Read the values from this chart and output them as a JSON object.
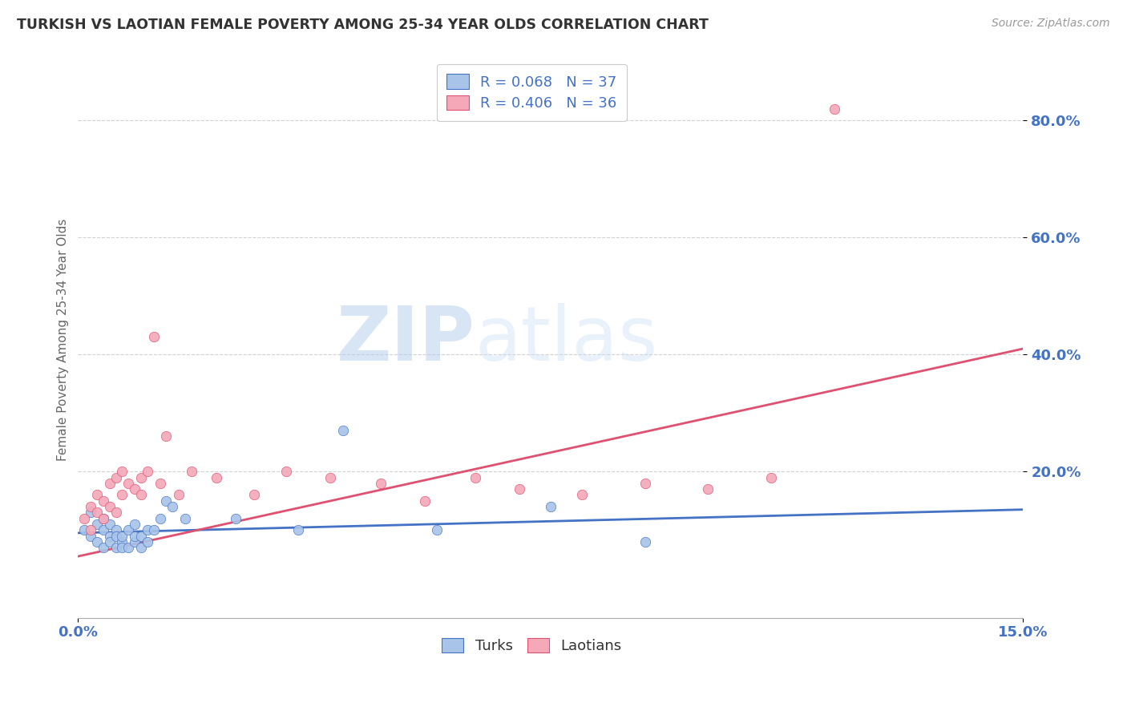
{
  "title": "TURKISH VS LAOTIAN FEMALE POVERTY AMONG 25-34 YEAR OLDS CORRELATION CHART",
  "source": "Source: ZipAtlas.com",
  "ylabel_label": "Female Poverty Among 25-34 Year Olds",
  "watermark_zip": "ZIP",
  "watermark_atlas": "atlas",
  "legend_turks_r": "R = 0.068",
  "legend_turks_n": "N = 37",
  "legend_laotians_r": "R = 0.406",
  "legend_laotians_n": "N = 36",
  "turks_color": "#a8c4e8",
  "laotians_color": "#f4a8b8",
  "turks_line_color": "#4472c4",
  "laotians_line_color": "#e05070",
  "turks_x": [
    0.001,
    0.002,
    0.002,
    0.003,
    0.003,
    0.004,
    0.004,
    0.004,
    0.005,
    0.005,
    0.005,
    0.006,
    0.006,
    0.006,
    0.007,
    0.007,
    0.007,
    0.008,
    0.008,
    0.009,
    0.009,
    0.009,
    0.01,
    0.01,
    0.011,
    0.011,
    0.012,
    0.013,
    0.014,
    0.015,
    0.017,
    0.025,
    0.035,
    0.042,
    0.057,
    0.075,
    0.09
  ],
  "turks_y": [
    0.1,
    0.13,
    0.09,
    0.11,
    0.08,
    0.1,
    0.12,
    0.07,
    0.09,
    0.11,
    0.08,
    0.07,
    0.1,
    0.09,
    0.08,
    0.07,
    0.09,
    0.1,
    0.07,
    0.08,
    0.09,
    0.11,
    0.07,
    0.09,
    0.1,
    0.08,
    0.1,
    0.12,
    0.15,
    0.14,
    0.12,
    0.12,
    0.1,
    0.27,
    0.1,
    0.14,
    0.08
  ],
  "laotians_x": [
    0.001,
    0.002,
    0.002,
    0.003,
    0.003,
    0.004,
    0.004,
    0.005,
    0.005,
    0.006,
    0.006,
    0.007,
    0.007,
    0.008,
    0.009,
    0.01,
    0.01,
    0.011,
    0.012,
    0.013,
    0.014,
    0.016,
    0.018,
    0.022,
    0.028,
    0.033,
    0.04,
    0.048,
    0.055,
    0.063,
    0.07,
    0.08,
    0.09,
    0.1,
    0.11,
    0.12
  ],
  "laotians_y": [
    0.12,
    0.14,
    0.1,
    0.13,
    0.16,
    0.15,
    0.12,
    0.14,
    0.18,
    0.13,
    0.19,
    0.2,
    0.16,
    0.18,
    0.17,
    0.16,
    0.19,
    0.2,
    0.43,
    0.18,
    0.26,
    0.16,
    0.2,
    0.19,
    0.16,
    0.2,
    0.19,
    0.18,
    0.15,
    0.19,
    0.17,
    0.16,
    0.18,
    0.17,
    0.19,
    0.82
  ],
  "turks_line_x0": 0.0,
  "turks_line_x1": 0.15,
  "turks_line_y0": 0.095,
  "turks_line_y1": 0.135,
  "laotians_line_x0": 0.0,
  "laotians_line_x1": 0.15,
  "laotians_line_y0": 0.055,
  "laotians_line_y1": 0.41,
  "xlim": [
    0.0,
    0.15
  ],
  "ylim": [
    -0.05,
    0.9
  ],
  "yticks": [
    0.2,
    0.4,
    0.6,
    0.8
  ],
  "ytick_labels": [
    "20.0%",
    "40.0%",
    "60.0%",
    "80.0%"
  ],
  "xtick_labels": [
    "0.0%",
    "15.0%"
  ],
  "marker_size": 80
}
